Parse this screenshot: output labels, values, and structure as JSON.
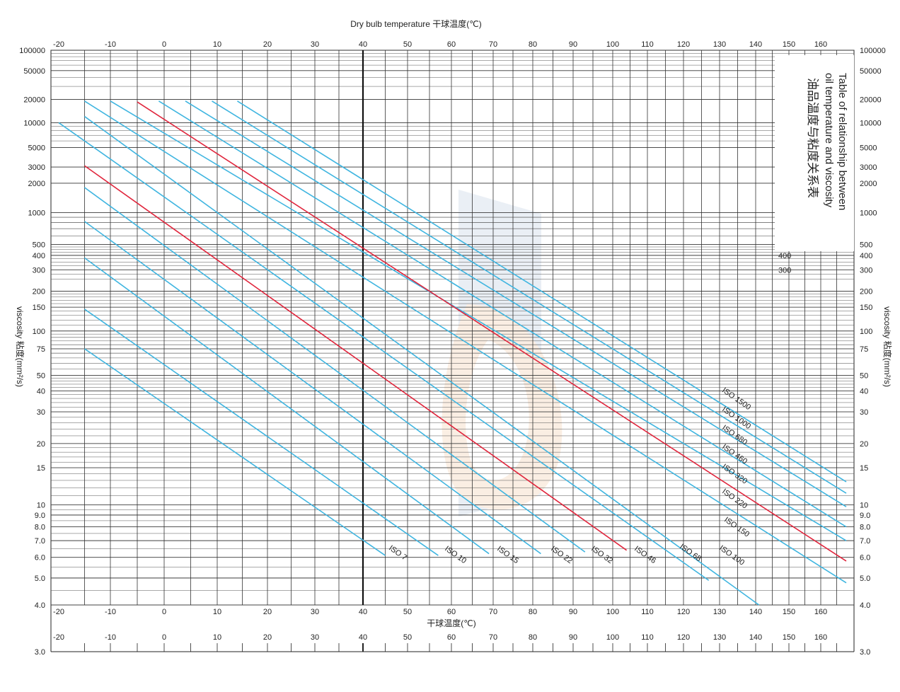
{
  "chart_data": {
    "type": "line",
    "top_axis_title": "Dry bulb temperature 干球温度(℃)",
    "bottom_axis_title": "干球温度(℃)",
    "y_axis_title": "viscosity 粘度(mm²/s)",
    "title_en_line1": "Table of relationship between",
    "title_en_line2": "oil temperature and viscosity",
    "title_cn": "油品温度与粘度关系表",
    "x_scale": "reciprocal-like",
    "x_range": [
      -20,
      168
    ],
    "x_ticks": [
      -20,
      -10,
      0,
      10,
      20,
      30,
      40,
      50,
      60,
      70,
      80,
      90,
      100,
      110,
      120,
      130,
      140,
      150,
      160
    ],
    "x_tick_labels": [
      "-20",
      "-10",
      "0",
      "10",
      "20",
      "30",
      "40",
      "50",
      "60",
      "70",
      "80",
      "90",
      "100",
      "110",
      "120",
      "130",
      "140",
      "150",
      "160"
    ],
    "y_scale": "log-log",
    "y_range": [
      3,
      100000
    ],
    "y_ticks": [
      100000,
      50000,
      20000,
      10000,
      5000,
      3000,
      2000,
      1000,
      500,
      400,
      300,
      200,
      150,
      100,
      75,
      50,
      40,
      30,
      20,
      15,
      10,
      9,
      8,
      7,
      6,
      5,
      4,
      3
    ],
    "y_tick_labels": [
      "100000",
      "50000",
      "20000",
      "10000",
      "5000",
      "3000",
      "2000",
      "1000",
      "500",
      "400",
      "300",
      "200",
      "150",
      "100",
      "75",
      "50",
      "40",
      "30",
      "20",
      "15",
      "10",
      "9.0",
      "8.0",
      "7.0",
      "6.0",
      "5.0",
      "4.0",
      "3.0"
    ],
    "y_minor": [
      60000,
      70000,
      80000,
      90000,
      30000,
      40000,
      6000,
      7000,
      8000,
      9000,
      600,
      700,
      800,
      900,
      60,
      70,
      80,
      90
    ],
    "grid": true,
    "highlight_x": 40,
    "series": [
      {
        "name": "ISO 7",
        "color": "#3fb5e0",
        "x": [
          -15,
          45
        ],
        "y": [
          75,
          6.1
        ]
      },
      {
        "name": "ISO 10",
        "color": "#3fb5e0",
        "x": [
          -15,
          57
        ],
        "y": [
          145,
          6.1
        ]
      },
      {
        "name": "ISO 15",
        "color": "#3fb5e0",
        "x": [
          -15,
          69
        ],
        "y": [
          380,
          6.2
        ]
      },
      {
        "name": "ISO 22",
        "color": "#3fb5e0",
        "x": [
          -15,
          82
        ],
        "y": [
          820,
          6.2
        ]
      },
      {
        "name": "ISO 32",
        "color": "#3fb5e0",
        "x": [
          -15,
          93
        ],
        "y": [
          1800,
          6.3
        ]
      },
      {
        "name": "ISO 46",
        "color": "#e0253c",
        "x": [
          -15,
          104
        ],
        "y": [
          3100,
          6.4
        ]
      },
      {
        "name": "ISO 68",
        "color": "#3fb5e0",
        "x": [
          -20,
          127
        ],
        "y": [
          10000,
          4.9
        ]
      },
      {
        "name": "ISO 100",
        "color": "#3fb5e0",
        "x": [
          -15,
          141
        ],
        "y": [
          12000,
          4.0
        ]
      },
      {
        "name": "ISO 150",
        "color": "#3fb5e0",
        "x": [
          -15,
          168
        ],
        "y": [
          19000,
          4.8
        ]
      },
      {
        "name": "ISO 220",
        "color": "#3fb5e0",
        "x": [
          -10,
          168
        ],
        "y": [
          19000,
          7.0
        ]
      },
      {
        "name": "ISO 320",
        "color": "#e0253c",
        "x": [
          -5,
          168
        ],
        "y": [
          18500,
          5.8
        ]
      },
      {
        "name": "ISO 460",
        "color": "#3fb5e0",
        "x": [
          -1,
          168
        ],
        "y": [
          19000,
          8.0
        ]
      },
      {
        "name": "ISO 680",
        "color": "#3fb5e0",
        "x": [
          4,
          168
        ],
        "y": [
          19000,
          9.8
        ]
      },
      {
        "name": "ISO 1000",
        "color": "#3fb5e0",
        "x": [
          9,
          168
        ],
        "y": [
          19000,
          11.3
        ]
      },
      {
        "name": "ISO 1500",
        "color": "#3fb5e0",
        "x": [
          14,
          168
        ],
        "y": [
          19000,
          12.8
        ]
      }
    ],
    "bottom_labels_order": [
      "ISO 7",
      "ISO 10",
      "ISO 15",
      "ISO 22",
      "ISO 32",
      "ISO 46",
      "ISO 68",
      "ISO 100"
    ],
    "right_labels_order": [
      "ISO 1500",
      "ISO 1000",
      "ISO 680",
      "ISO 460",
      "ISO 320",
      "ISO 220",
      "ISO 150"
    ],
    "extra_bottom_ylabel": "3.0"
  }
}
